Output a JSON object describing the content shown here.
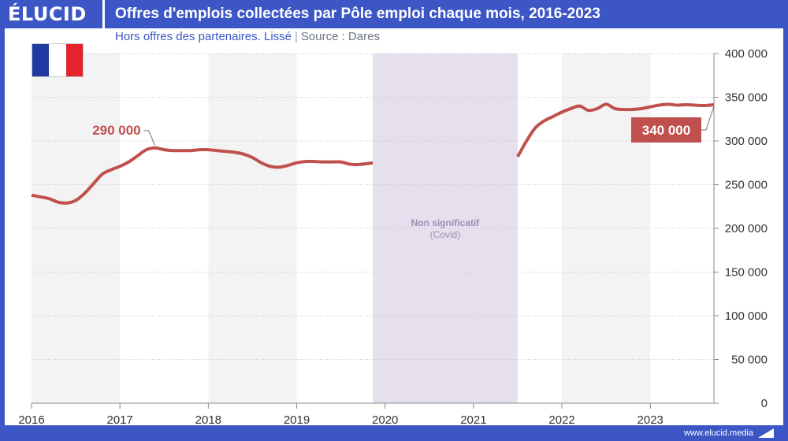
{
  "header": {
    "logo": "ÉLUCID",
    "title": "Offres d'emplois collectées par Pôle emploi chaque mois, 2016-2023"
  },
  "subtitle": {
    "main": "Hors offres des partenaires. Lissé",
    "separator": "|",
    "source": "Source : Dares"
  },
  "footer": {
    "site": "www.elucid.media"
  },
  "colors": {
    "brand": "#3c56c6",
    "line": "#c0504d",
    "covid_band": "#e5dfee",
    "covid_text": "#9b8fb4"
  },
  "flag": {
    "country": "France",
    "colors": [
      "#1f3aa0",
      "#ffffff",
      "#e4232e"
    ]
  },
  "chart_data": {
    "type": "line",
    "title": "Offres d'emplois collectées par Pôle emploi chaque mois, 2016-2023",
    "xlabel": "",
    "ylabel": "",
    "xlim": [
      2016,
      2023.72
    ],
    "ylim": [
      0,
      400000
    ],
    "x_ticks": [
      2016,
      2017,
      2018,
      2019,
      2020,
      2021,
      2022,
      2023
    ],
    "y_ticks": [
      0,
      50000,
      100000,
      150000,
      200000,
      250000,
      300000,
      350000,
      400000
    ],
    "y_tick_labels": [
      "0",
      "50 000",
      "100 000",
      "150 000",
      "200 000",
      "250 000",
      "300 000",
      "350 000",
      "400 000"
    ],
    "y_axis_side": "right",
    "grid": "horizontal dotted, vertical year bands",
    "shaded_region": {
      "from": 2019.86,
      "to": 2021.5,
      "label": "Non significatif",
      "sublabel": "(Covid)"
    },
    "series": [
      {
        "segments": [
          {
            "x": [
              2016.0,
              2016.1,
              2016.2,
              2016.3,
              2016.4,
              2016.5,
              2016.6,
              2016.7,
              2016.8,
              2016.9,
              2017.0,
              2017.1,
              2017.2,
              2017.3,
              2017.4,
              2017.5,
              2017.6,
              2017.7,
              2017.8,
              2017.9,
              2018.0,
              2018.1,
              2018.2,
              2018.3,
              2018.4,
              2018.5,
              2018.6,
              2018.7,
              2018.8,
              2018.9,
              2019.0,
              2019.1,
              2019.2,
              2019.3,
              2019.4,
              2019.5,
              2019.6,
              2019.7,
              2019.86
            ],
            "y": [
              238000,
              236000,
              234000,
              230000,
              229000,
              232000,
              240000,
              251000,
              262000,
              267000,
              271000,
              276000,
              283000,
              290000,
              292000,
              290000,
              289000,
              289000,
              289000,
              290000,
              290000,
              289000,
              288000,
              287000,
              285000,
              281000,
              275000,
              271000,
              270000,
              272000,
              275000,
              276500,
              276500,
              276000,
              276000,
              276000,
              273500,
              273000,
              275000
            ]
          },
          {
            "x": [
              2021.5,
              2021.6,
              2021.7,
              2021.8,
              2021.9,
              2022.0,
              2022.1,
              2022.2,
              2022.3,
              2022.4,
              2022.5,
              2022.6,
              2022.7,
              2022.8,
              2022.9,
              2023.0,
              2023.1,
              2023.2,
              2023.3,
              2023.4,
              2023.5,
              2023.6,
              2023.72
            ],
            "y": [
              282000,
              300000,
              315000,
              323000,
              328000,
              333000,
              337000,
              340000,
              335000,
              337000,
              342000,
              337000,
              336000,
              336000,
              337000,
              339000,
              341000,
              342000,
              341000,
              341500,
              341000,
              340500,
              341500
            ]
          }
        ]
      }
    ],
    "annotations": [
      {
        "text": "290 000",
        "x": 2017.45,
        "y": 292000,
        "style": "red text"
      },
      {
        "text": "340 000",
        "x": 2023.72,
        "y": 341500,
        "style": "white on red box"
      }
    ]
  }
}
